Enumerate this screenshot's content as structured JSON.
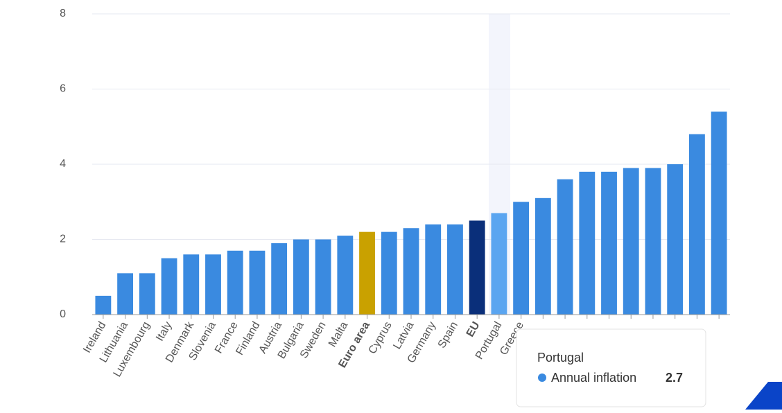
{
  "chart_data": {
    "type": "bar",
    "categories": [
      "Ireland",
      "Lithuania",
      "Luxembourg",
      "Italy",
      "Denmark",
      "Slovenia",
      "France",
      "Finland",
      "Austria",
      "Bulgaria",
      "Sweden",
      "Malta",
      "Euro area",
      "Cyprus",
      "Latvia",
      "Germany",
      "Spain",
      "EU",
      "Portugal",
      "Greece",
      null,
      null,
      null,
      null,
      null,
      null,
      null,
      null,
      null
    ],
    "series": [
      {
        "name": "Annual inflation",
        "values": [
          0.5,
          1.1,
          1.1,
          1.5,
          1.6,
          1.6,
          1.7,
          1.7,
          1.9,
          2.0,
          2.0,
          2.1,
          2.2,
          2.2,
          2.3,
          2.4,
          2.4,
          2.5,
          2.7,
          3.0,
          3.1,
          3.6,
          3.8,
          3.8,
          3.9,
          3.9,
          4.0,
          4.8,
          5.4
        ],
        "colors": [
          "#3a8ae0",
          "#3a8ae0",
          "#3a8ae0",
          "#3a8ae0",
          "#3a8ae0",
          "#3a8ae0",
          "#3a8ae0",
          "#3a8ae0",
          "#3a8ae0",
          "#3a8ae0",
          "#3a8ae0",
          "#3a8ae0",
          "#c9a100",
          "#3a8ae0",
          "#3a8ae0",
          "#3a8ae0",
          "#3a8ae0",
          "#0a2f7a",
          "#5aa5f0",
          "#3a8ae0",
          "#3a8ae0",
          "#3a8ae0",
          "#3a8ae0",
          "#3a8ae0",
          "#3a8ae0",
          "#3a8ae0",
          "#3a8ae0",
          "#3a8ae0",
          "#3a8ae0"
        ]
      }
    ],
    "ylim": [
      0,
      8
    ],
    "yticks": [
      0,
      2,
      4,
      6,
      8
    ],
    "grid": true
  }
}
